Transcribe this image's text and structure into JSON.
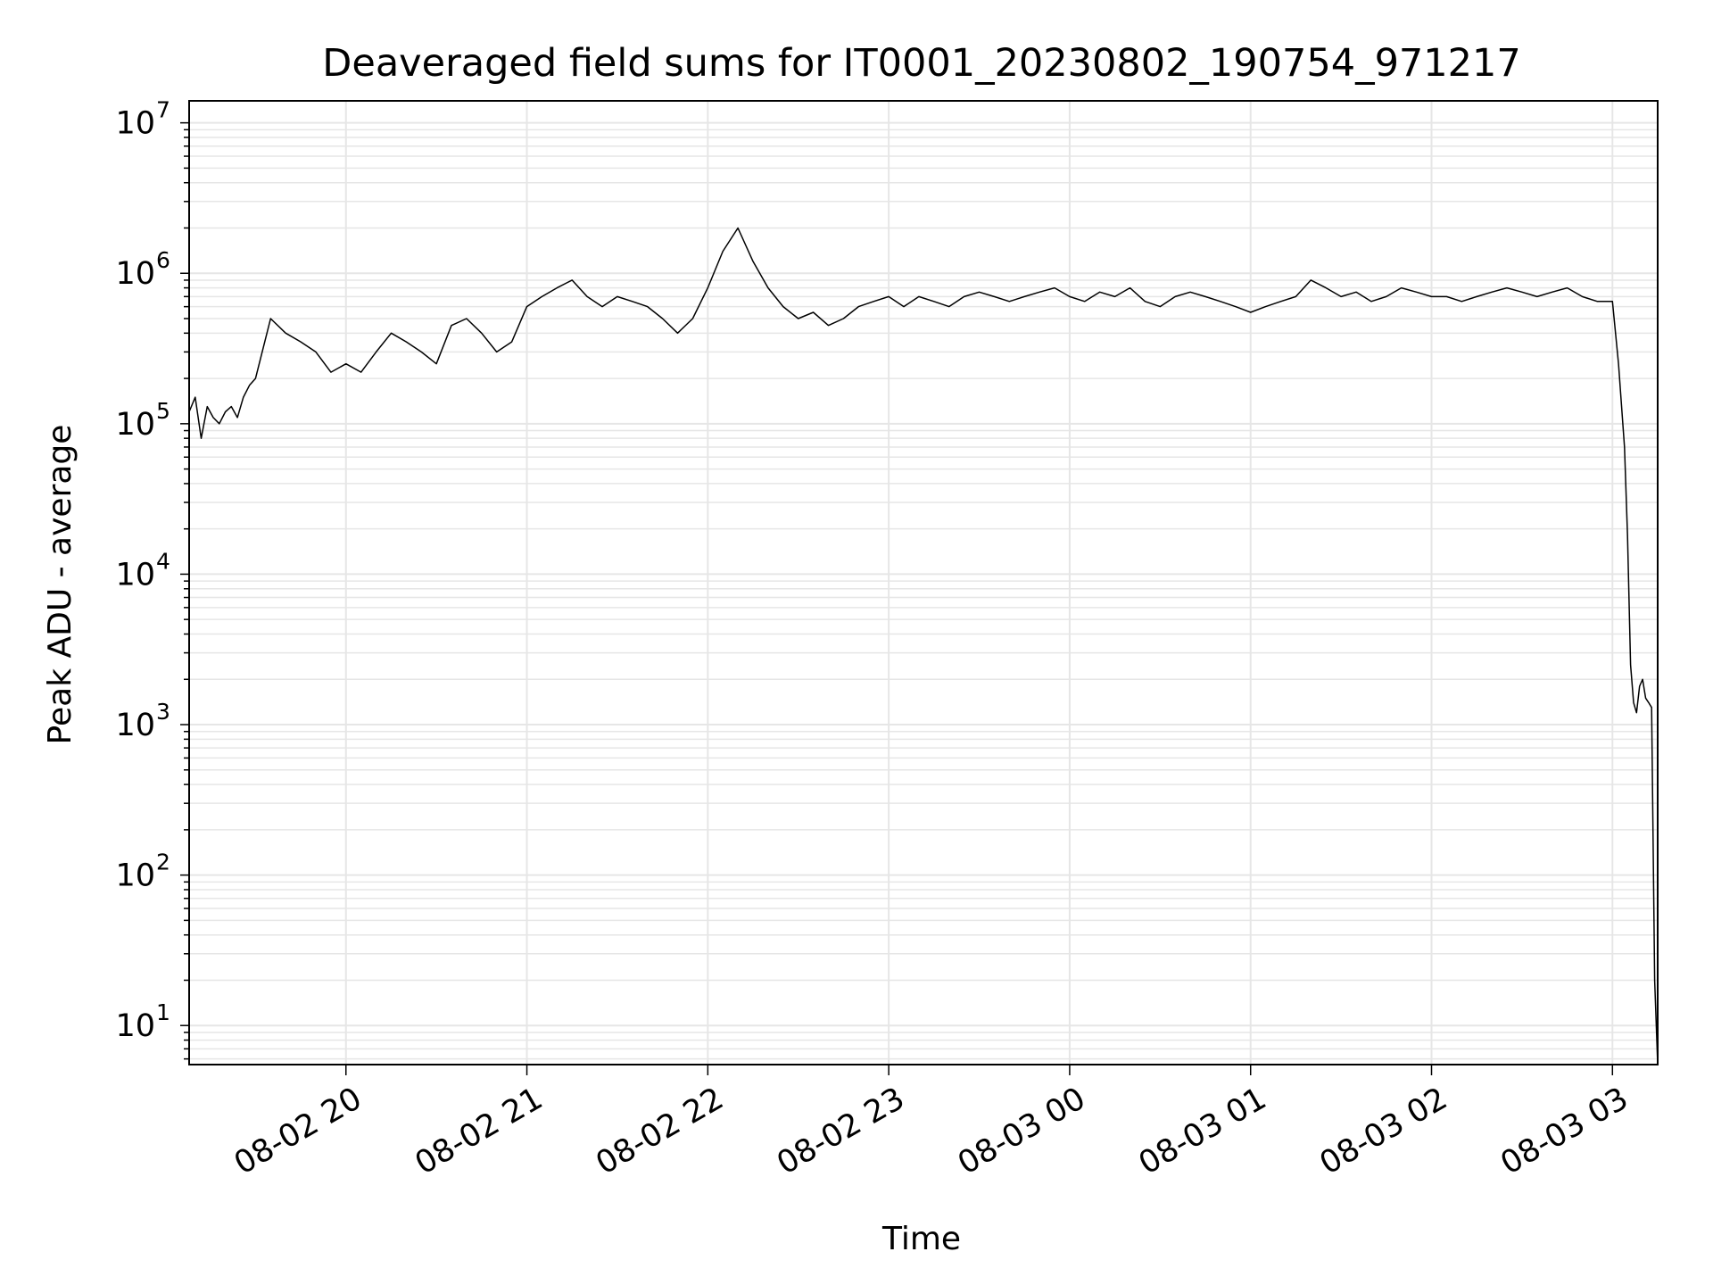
{
  "chart_data": {
    "type": "line",
    "title": "Deaveraged field sums for IT0001_20230802_190754_971217",
    "xlabel": "Time",
    "ylabel": "Peak ADU - average",
    "yscale": "log",
    "grid": true,
    "xlim": [
      "2023-08-02 19:08",
      "2023-08-03 03:15"
    ],
    "ylim": [
      5.5,
      14000000
    ],
    "x_tick_labels": [
      "08-02 20",
      "08-02 21",
      "08-02 22",
      "08-02 23",
      "08-03 00",
      "08-03 01",
      "08-03 02",
      "08-03 03"
    ],
    "x_ticks": [
      "2023-08-02 20:00",
      "2023-08-02 21:00",
      "2023-08-02 22:00",
      "2023-08-02 23:00",
      "2023-08-03 00:00",
      "2023-08-03 01:00",
      "2023-08-03 02:00",
      "2023-08-03 03:00"
    ],
    "y_tick_labels": [
      {
        "base": "10",
        "exp": "1",
        "value": 10
      },
      {
        "base": "10",
        "exp": "2",
        "value": 100
      },
      {
        "base": "10",
        "exp": "3",
        "value": 1000
      },
      {
        "base": "10",
        "exp": "4",
        "value": 10000
      },
      {
        "base": "10",
        "exp": "5",
        "value": 100000
      },
      {
        "base": "10",
        "exp": "6",
        "value": 1000000
      },
      {
        "base": "10",
        "exp": "7",
        "value": 10000000
      }
    ],
    "line_color": "#000000",
    "grid_color": "#e6e6e6",
    "series": [
      {
        "x": [
          "2023-08-02 19:08",
          "2023-08-02 19:10",
          "2023-08-02 19:12",
          "2023-08-02 19:14",
          "2023-08-02 19:16",
          "2023-08-02 19:18",
          "2023-08-02 19:20",
          "2023-08-02 19:22",
          "2023-08-02 19:24",
          "2023-08-02 19:26",
          "2023-08-02 19:28",
          "2023-08-02 19:30",
          "2023-08-02 19:35",
          "2023-08-02 19:40",
          "2023-08-02 19:45",
          "2023-08-02 19:50",
          "2023-08-02 19:55",
          "2023-08-02 20:00",
          "2023-08-02 20:05",
          "2023-08-02 20:10",
          "2023-08-02 20:15",
          "2023-08-02 20:20",
          "2023-08-02 20:25",
          "2023-08-02 20:30",
          "2023-08-02 20:35",
          "2023-08-02 20:40",
          "2023-08-02 20:45",
          "2023-08-02 20:50",
          "2023-08-02 20:55",
          "2023-08-02 21:00",
          "2023-08-02 21:05",
          "2023-08-02 21:10",
          "2023-08-02 21:15",
          "2023-08-02 21:20",
          "2023-08-02 21:25",
          "2023-08-02 21:30",
          "2023-08-02 21:35",
          "2023-08-02 21:40",
          "2023-08-02 21:45",
          "2023-08-02 21:50",
          "2023-08-02 21:55",
          "2023-08-02 22:00",
          "2023-08-02 22:05",
          "2023-08-02 22:10",
          "2023-08-02 22:15",
          "2023-08-02 22:20",
          "2023-08-02 22:25",
          "2023-08-02 22:30",
          "2023-08-02 22:35",
          "2023-08-02 22:40",
          "2023-08-02 22:45",
          "2023-08-02 22:50",
          "2023-08-02 22:55",
          "2023-08-02 23:00",
          "2023-08-02 23:05",
          "2023-08-02 23:10",
          "2023-08-02 23:15",
          "2023-08-02 23:20",
          "2023-08-02 23:25",
          "2023-08-02 23:30",
          "2023-08-02 23:35",
          "2023-08-02 23:40",
          "2023-08-02 23:45",
          "2023-08-02 23:50",
          "2023-08-02 23:55",
          "2023-08-03 00:00",
          "2023-08-03 00:05",
          "2023-08-03 00:10",
          "2023-08-03 00:15",
          "2023-08-03 00:20",
          "2023-08-03 00:25",
          "2023-08-03 00:30",
          "2023-08-03 00:35",
          "2023-08-03 00:40",
          "2023-08-03 00:45",
          "2023-08-03 00:50",
          "2023-08-03 00:55",
          "2023-08-03 01:00",
          "2023-08-03 01:05",
          "2023-08-03 01:10",
          "2023-08-03 01:15",
          "2023-08-03 01:20",
          "2023-08-03 01:25",
          "2023-08-03 01:30",
          "2023-08-03 01:35",
          "2023-08-03 01:40",
          "2023-08-03 01:45",
          "2023-08-03 01:50",
          "2023-08-03 01:55",
          "2023-08-03 02:00",
          "2023-08-03 02:05",
          "2023-08-03 02:10",
          "2023-08-03 02:15",
          "2023-08-03 02:20",
          "2023-08-03 02:25",
          "2023-08-03 02:30",
          "2023-08-03 02:35",
          "2023-08-03 02:40",
          "2023-08-03 02:45",
          "2023-08-03 02:50",
          "2023-08-03 02:55",
          "2023-08-03 03:00",
          "2023-08-03 03:02",
          "2023-08-03 03:04",
          "2023-08-03 03:05",
          "2023-08-03 03:06",
          "2023-08-03 03:07",
          "2023-08-03 03:08",
          "2023-08-03 03:09",
          "2023-08-03 03:10",
          "2023-08-03 03:11",
          "2023-08-03 03:12",
          "2023-08-03 03:13",
          "2023-08-03 03:14",
          "2023-08-03 03:15"
        ],
        "y": [
          120000,
          150000,
          80000,
          130000,
          110000,
          100000,
          120000,
          130000,
          110000,
          150000,
          180000,
          200000,
          500000,
          400000,
          350000,
          300000,
          220000,
          250000,
          220000,
          300000,
          400000,
          350000,
          300000,
          250000,
          450000,
          500000,
          400000,
          300000,
          350000,
          600000,
          700000,
          800000,
          900000,
          700000,
          600000,
          700000,
          650000,
          600000,
          500000,
          400000,
          500000,
          800000,
          1400000,
          2000000,
          1200000,
          800000,
          600000,
          500000,
          550000,
          450000,
          500000,
          600000,
          650000,
          700000,
          600000,
          700000,
          650000,
          600000,
          700000,
          750000,
          700000,
          650000,
          700000,
          750000,
          800000,
          700000,
          650000,
          750000,
          700000,
          800000,
          650000,
          600000,
          700000,
          750000,
          700000,
          650000,
          600000,
          550000,
          600000,
          650000,
          700000,
          900000,
          800000,
          700000,
          750000,
          650000,
          700000,
          800000,
          750000,
          700000,
          700000,
          650000,
          700000,
          750000,
          800000,
          750000,
          700000,
          750000,
          800000,
          700000,
          650000,
          650000,
          250000,
          70000,
          18000,
          2500,
          1400,
          1200,
          1800,
          2000,
          1500,
          1400,
          1300,
          20,
          5.5
        ]
      }
    ]
  }
}
